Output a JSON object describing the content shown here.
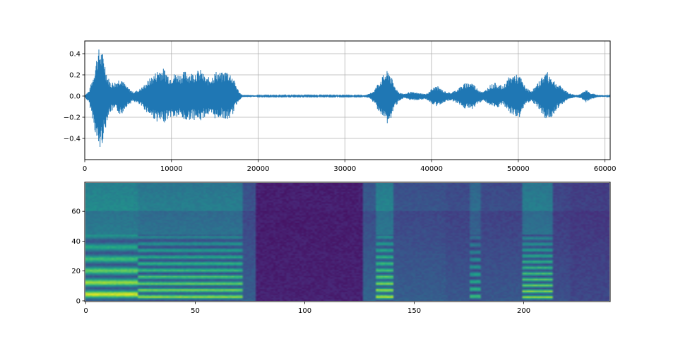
{
  "chart_data": [
    {
      "type": "line",
      "title": "",
      "xlabel": "",
      "ylabel": "",
      "xlim": [
        0,
        60600
      ],
      "ylim": [
        -0.6,
        0.52
      ],
      "grid": true,
      "color": "#1f77b4",
      "x_ticks": [
        0,
        10000,
        20000,
        30000,
        40000,
        50000,
        60000
      ],
      "x_tick_labels": [
        "0",
        "10000",
        "20000",
        "30000",
        "40000",
        "50000",
        "60000"
      ],
      "y_ticks": [
        0.4,
        0.2,
        0.0,
        -0.2,
        -0.4
      ],
      "y_tick_labels": [
        "0.4",
        "0.2",
        "0.0",
        "−0.2",
        "−0.4"
      ],
      "series": [
        {
          "envelope_x": [
            0,
            500,
            1000,
            1500,
            1800,
            2200,
            2600,
            3000,
            3600,
            4200,
            4600,
            5000,
            5600,
            6200,
            6800,
            7400,
            8000,
            8600,
            9200,
            9800,
            10400,
            11000,
            11600,
            12200,
            12800,
            13400,
            14000,
            14600,
            15200,
            15800,
            16400,
            17000,
            17400,
            17800,
            18200,
            19000,
            20000,
            24000,
            28000,
            32000,
            32800,
            33400,
            34000,
            34600,
            35100,
            35600,
            36200,
            36800,
            37500,
            38400,
            39400,
            40000,
            40600,
            41400,
            42200,
            43000,
            43800,
            44600,
            45300,
            46000,
            46800,
            47500,
            48200,
            48900,
            49600,
            50200,
            50800,
            51400,
            52000,
            52600,
            53200,
            53800,
            54400,
            55000,
            55800,
            56600,
            57200,
            57800,
            58400,
            59200,
            60600
          ],
          "envelope_max": [
            0.01,
            0.05,
            0.2,
            0.44,
            0.46,
            0.38,
            0.2,
            0.13,
            0.14,
            0.19,
            0.12,
            0.08,
            0.04,
            0.06,
            0.1,
            0.16,
            0.21,
            0.27,
            0.26,
            0.19,
            0.22,
            0.21,
            0.24,
            0.22,
            0.24,
            0.25,
            0.17,
            0.19,
            0.24,
            0.22,
            0.25,
            0.2,
            0.12,
            0.04,
            0.01,
            0.01,
            0.005,
            0.005,
            0.005,
            0.005,
            0.02,
            0.06,
            0.15,
            0.22,
            0.25,
            0.12,
            0.04,
            0.02,
            0.04,
            0.03,
            0.02,
            0.07,
            0.1,
            0.05,
            0.03,
            0.07,
            0.12,
            0.14,
            0.07,
            0.04,
            0.11,
            0.13,
            0.09,
            0.18,
            0.21,
            0.19,
            0.09,
            0.05,
            0.09,
            0.17,
            0.24,
            0.19,
            0.12,
            0.09,
            0.03,
            0.01,
            0.02,
            0.06,
            0.03,
            0.01,
            0.005
          ],
          "envelope_min": [
            -0.01,
            -0.07,
            -0.25,
            -0.5,
            -0.52,
            -0.4,
            -0.22,
            -0.15,
            -0.14,
            -0.19,
            -0.12,
            -0.09,
            -0.05,
            -0.08,
            -0.12,
            -0.18,
            -0.22,
            -0.26,
            -0.25,
            -0.2,
            -0.21,
            -0.2,
            -0.25,
            -0.22,
            -0.23,
            -0.24,
            -0.18,
            -0.2,
            -0.22,
            -0.2,
            -0.24,
            -0.19,
            -0.1,
            -0.04,
            -0.01,
            -0.01,
            -0.005,
            -0.005,
            -0.005,
            -0.005,
            -0.02,
            -0.07,
            -0.16,
            -0.24,
            -0.28,
            -0.14,
            -0.05,
            -0.02,
            -0.04,
            -0.04,
            -0.03,
            -0.08,
            -0.1,
            -0.06,
            -0.04,
            -0.07,
            -0.12,
            -0.13,
            -0.08,
            -0.04,
            -0.1,
            -0.12,
            -0.08,
            -0.16,
            -0.2,
            -0.2,
            -0.08,
            -0.05,
            -0.08,
            -0.15,
            -0.23,
            -0.21,
            -0.13,
            -0.08,
            -0.03,
            -0.01,
            -0.02,
            -0.06,
            -0.03,
            -0.01,
            -0.005
          ]
        }
      ]
    },
    {
      "type": "heatmap",
      "title": "",
      "xlabel": "",
      "ylabel": "",
      "colormap": "viridis",
      "xlim": [
        -0.5,
        239.5
      ],
      "ylim": [
        -0.5,
        79.5
      ],
      "x_ticks": [
        0,
        50,
        100,
        150,
        200
      ],
      "x_tick_labels": [
        "0",
        "50",
        "100",
        "150",
        "200"
      ],
      "y_ticks": [
        0,
        20,
        40,
        60
      ],
      "y_tick_labels": [
        "0",
        "20",
        "40",
        "60"
      ],
      "frames": 240,
      "bins": 80,
      "segments": [
        {
          "start": 0,
          "end": 24,
          "level": 0.9,
          "harmonics": true,
          "f0": 8
        },
        {
          "start": 24,
          "end": 72,
          "level": 0.8,
          "harmonics": true,
          "f0": 4.5
        },
        {
          "start": 72,
          "end": 78,
          "level": 0.45,
          "harmonics": false,
          "f0": 0
        },
        {
          "start": 78,
          "end": 127,
          "level": 0.08,
          "harmonics": false,
          "f0": 0
        },
        {
          "start": 127,
          "end": 133,
          "level": 0.5,
          "harmonics": false,
          "f0": 0
        },
        {
          "start": 133,
          "end": 141,
          "level": 0.85,
          "harmonics": true,
          "f0": 4.5
        },
        {
          "start": 141,
          "end": 150,
          "level": 0.45,
          "harmonics": false,
          "f0": 0
        },
        {
          "start": 150,
          "end": 165,
          "level": 0.45,
          "harmonics": false,
          "f0": 0
        },
        {
          "start": 165,
          "end": 176,
          "level": 0.4,
          "harmonics": false,
          "f0": 0
        },
        {
          "start": 176,
          "end": 181,
          "level": 0.65,
          "harmonics": true,
          "f0": 5
        },
        {
          "start": 181,
          "end": 200,
          "level": 0.4,
          "harmonics": false,
          "f0": 0
        },
        {
          "start": 200,
          "end": 214,
          "level": 0.8,
          "harmonics": true,
          "f0": 4
        },
        {
          "start": 214,
          "end": 222,
          "level": 0.35,
          "harmonics": false,
          "f0": 0
        },
        {
          "start": 222,
          "end": 240,
          "level": 0.3,
          "harmonics": false,
          "f0": 0
        }
      ]
    }
  ]
}
